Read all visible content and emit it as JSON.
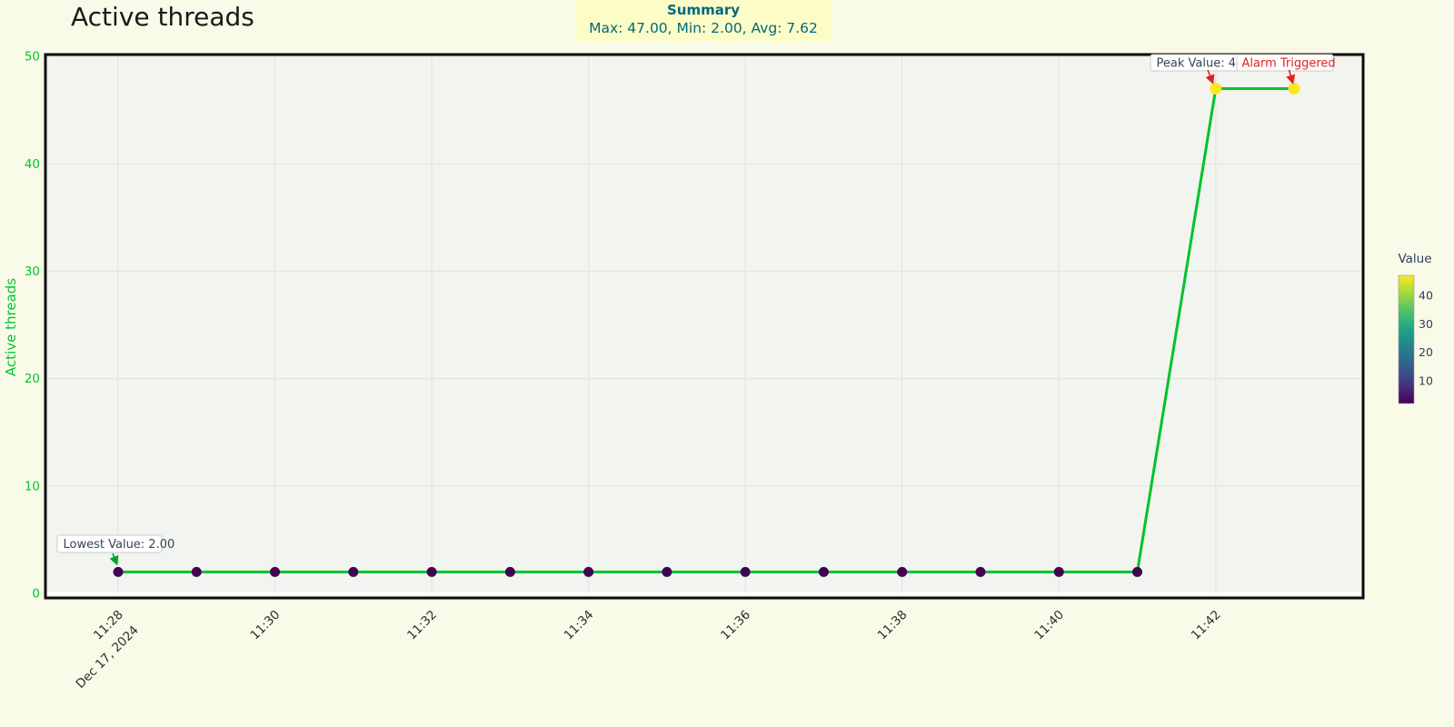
{
  "header": {
    "title": "Active threads",
    "summary": {
      "title": "Summary",
      "stats": "Max: 47.00, Min: 2.00, Avg: 7.62"
    }
  },
  "colors": {
    "page_bg": "#FAFAE8",
    "title_text": "#1A1A1A",
    "summary_bg": "#FCFCC6",
    "summary_text": "#00697C",
    "plot_bg": "#F2F4EF",
    "grid": "#E2E5DF",
    "spine": "#0B0B0B",
    "line": "#00C22B",
    "ytick_text": "#00C52F",
    "xtick_text": "#2E2E2E",
    "zero_line": "#FDFEFA",
    "annotation_text": "#37474F",
    "alarm_text": "#E4201E",
    "lowest_arrow": "#00A32A",
    "alarm_arrow": "#E4201E",
    "annotation_box_bg": "#FFFFFF",
    "annotation_box_border": "#CCCCCC",
    "colorbar_text": "#2A3F5A"
  },
  "chart_data": {
    "type": "line",
    "title": "Active threads",
    "xlabel": "",
    "ylabel": "Active threads",
    "x": [
      "11:28",
      "11:29",
      "11:30",
      "11:31",
      "11:32",
      "11:33",
      "11:34",
      "11:35",
      "11:36",
      "11:37",
      "11:38",
      "11:39",
      "11:40",
      "11:41",
      "11:42",
      "11:43"
    ],
    "x_date_sublabel": "Dec 17, 2024",
    "values": [
      2,
      2,
      2,
      2,
      2,
      2,
      2,
      2,
      2,
      2,
      2,
      2,
      2,
      2,
      47,
      47
    ],
    "max": 47.0,
    "min": 2.0,
    "avg": 7.62,
    "ylim": [
      0,
      50
    ],
    "yticks": [
      0,
      10,
      20,
      30,
      40,
      50
    ],
    "xtick_every": 2,
    "grid": true,
    "legend_position": "none",
    "marker_colormap": "viridis",
    "colormap_stops": [
      "#440154",
      "#46327E",
      "#365C8D",
      "#277F8E",
      "#1FA187",
      "#4AC16D",
      "#A0DA39",
      "#FDE725"
    ],
    "color_range": [
      2,
      47
    ],
    "colorbar": {
      "title": "Value",
      "ticks": [
        10,
        20,
        30,
        40
      ]
    },
    "annotations": [
      {
        "id": "lowest",
        "text": "Lowest Value: 2.00",
        "target": "11:28",
        "target_value": 2
      },
      {
        "id": "peak",
        "text": "Peak Value: 47.00",
        "target": "11:42",
        "target_value": 47
      },
      {
        "id": "alarm",
        "text": "Alarm Triggered",
        "target": "11:43",
        "target_value": 47
      }
    ]
  }
}
